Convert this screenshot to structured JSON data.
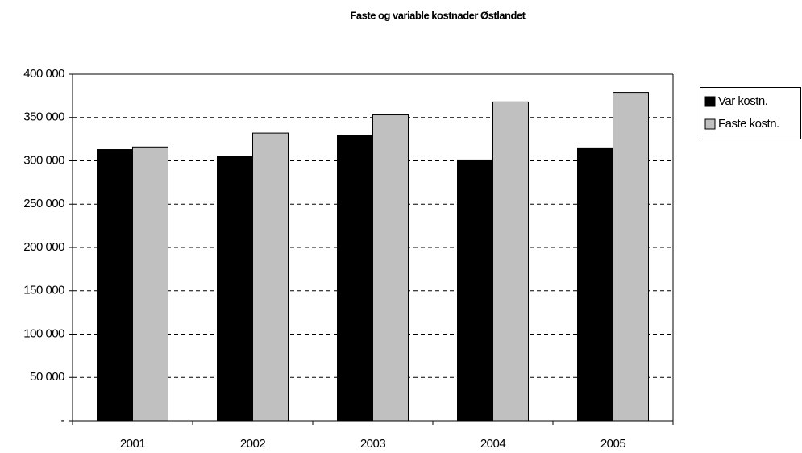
{
  "chart_data": {
    "type": "bar",
    "title": "Faste og variable kostnader Østlandet",
    "categories": [
      "2001",
      "2002",
      "2003",
      "2004",
      "2005"
    ],
    "series": [
      {
        "name": "Var kostn.",
        "color": "#000000",
        "values": [
          313000,
          305000,
          329000,
          301000,
          315000
        ]
      },
      {
        "name": "Faste kostn.",
        "color": "#c0c0c0",
        "values": [
          316000,
          332000,
          353000,
          368000,
          379000
        ]
      }
    ],
    "ylim": [
      0,
      400000
    ],
    "yticks": [
      {
        "value": 0,
        "label": "-"
      },
      {
        "value": 50000,
        "label": "50 000"
      },
      {
        "value": 100000,
        "label": "100 000"
      },
      {
        "value": 150000,
        "label": "150 000"
      },
      {
        "value": 200000,
        "label": "200 000"
      },
      {
        "value": 250000,
        "label": "250 000"
      },
      {
        "value": 300000,
        "label": "300 000"
      },
      {
        "value": 350000,
        "label": "350 000"
      },
      {
        "value": 400000,
        "label": "400 000"
      }
    ],
    "grid": true,
    "legend": "right"
  }
}
